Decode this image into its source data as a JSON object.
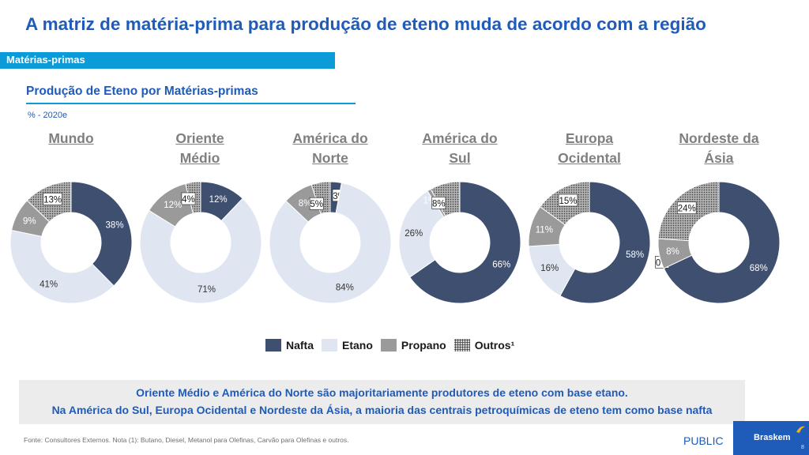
{
  "title": "A matriz de matéria-prima para produção de eteno muda de acordo com a região",
  "section_label": "Matérias-primas",
  "chart_title": "Produção de Eteno por Matérias-primas",
  "units_note": "% - 2020e",
  "colors": {
    "nafta": "#3e4f6f",
    "etano": "#dfe6f1",
    "propano": "#9a9a9a",
    "outros": "#8c8c8c",
    "accent_blue": "#1f5bb8",
    "bar_blue": "#0b9bd8"
  },
  "chart_data": {
    "type": "donut",
    "categories": [
      "Nafta",
      "Etano",
      "Propano",
      "Outros¹"
    ],
    "legend": [
      "Nafta",
      "Etano",
      "Propano",
      "Outros¹"
    ],
    "legend_position": "bottom",
    "charts": [
      {
        "region_lines": [
          "Mundo"
        ],
        "values": [
          38,
          41,
          9,
          13
        ],
        "labels": [
          "38%",
          "41%",
          "9%",
          "13%"
        ]
      },
      {
        "region_lines": [
          "Oriente",
          "Médio"
        ],
        "values": [
          12,
          71,
          12,
          4
        ],
        "labels": [
          "12%",
          "71%",
          "12%",
          "4%"
        ]
      },
      {
        "region_lines": [
          "América do",
          "Norte"
        ],
        "values": [
          3,
          84,
          8,
          5
        ],
        "labels": [
          "3%",
          "84%",
          "8%",
          "5%"
        ]
      },
      {
        "region_lines": [
          "América do",
          "Sul"
        ],
        "values": [
          66,
          26,
          1,
          8
        ],
        "labels": [
          "66%",
          "26%",
          "1%",
          "8%"
        ]
      },
      {
        "region_lines": [
          "Europa",
          "Ocidental"
        ],
        "values": [
          58,
          16,
          11,
          15
        ],
        "labels": [
          "58%",
          "16%",
          "11%",
          "15%"
        ]
      },
      {
        "region_lines": [
          "Nordeste da",
          "Ásia"
        ],
        "values": [
          68,
          0,
          8,
          24
        ],
        "labels": [
          "68%",
          "0%",
          "8%",
          "24%"
        ]
      }
    ]
  },
  "callout": {
    "line1": "Oriente Médio e América do Norte são majoritariamente produtores de eteno com base etano.",
    "line2": "Na América do Sul, Europa Ocidental e Nordeste da Ásia, a maioria das centrais petroquímicas de eteno tem como base nafta"
  },
  "footnote": "Fonte: Consultores Externos. Nota (1): Butano, Diesel, Metanol para Olefinas, Carvão para Olefinas e outros.",
  "classification": "PUBLIC",
  "brand": {
    "name": "Braskem",
    "page_number": "8",
    "logo_icon": "braskem-logo-icon"
  }
}
